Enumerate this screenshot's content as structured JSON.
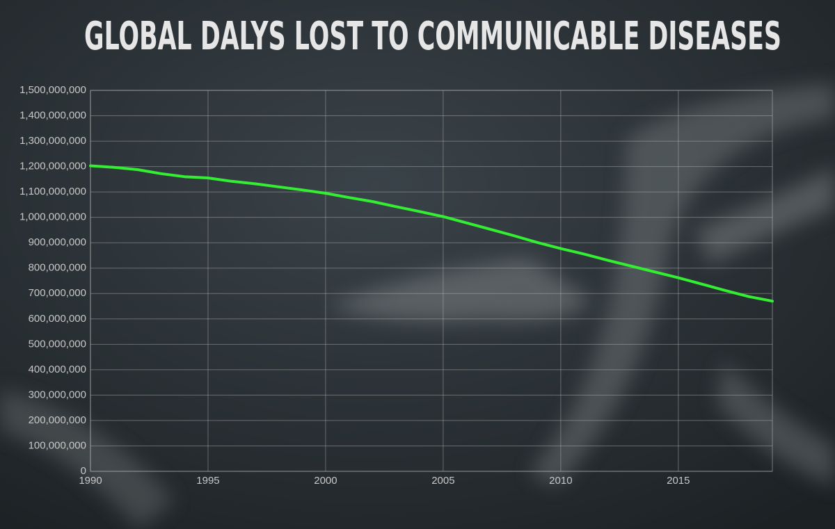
{
  "chart_data": {
    "type": "line",
    "title": "GLOBAL DALYS LOST TO COMMUNICABLE DISEASES",
    "x": [
      1990,
      1991,
      1992,
      1993,
      1994,
      1995,
      1996,
      1997,
      1998,
      1999,
      2000,
      2001,
      2002,
      2003,
      2004,
      2005,
      2006,
      2007,
      2008,
      2009,
      2010,
      2011,
      2012,
      2013,
      2014,
      2015,
      2016,
      2017,
      2018,
      2019
    ],
    "values": [
      1203000000,
      1197000000,
      1188000000,
      1172000000,
      1160000000,
      1155000000,
      1142000000,
      1132000000,
      1120000000,
      1108000000,
      1095000000,
      1078000000,
      1062000000,
      1042000000,
      1023000000,
      1003000000,
      978000000,
      953000000,
      928000000,
      901000000,
      877000000,
      855000000,
      831000000,
      808000000,
      785000000,
      762000000,
      737000000,
      712000000,
      688000000,
      670000000
    ],
    "color": "#33ee33",
    "xlim": [
      1990,
      2019
    ],
    "xticks": [
      1990,
      1995,
      2000,
      2005,
      2010,
      2015
    ],
    "ylim": [
      0,
      1500000000
    ],
    "yticks": [
      0,
      {
        "value": 100000000,
        "label": "100,000,000"
      },
      {
        "value": 200000000,
        "label": "200,000,000"
      },
      {
        "value": 300000000,
        "label": "300,000,000"
      },
      {
        "value": 400000000,
        "label": "400,000,000"
      },
      {
        "value": 500000000,
        "label": "500,000,000"
      },
      {
        "value": 600000000,
        "label": "600,000,000"
      },
      {
        "value": 700000000,
        "label": "700,000,000"
      },
      {
        "value": 800000000,
        "label": "800,000,000"
      },
      {
        "value": 900000000,
        "label": "900,000,000"
      },
      {
        "value": 1000000000,
        "label": "1,000,000,000"
      },
      {
        "value": 1100000000,
        "label": "1,100,000,000"
      },
      {
        "value": 1200000000,
        "label": "1,200,000,000"
      },
      {
        "value": 1300000000,
        "label": "1,300,000,000"
      },
      {
        "value": 1400000000,
        "label": "1,400,000,000"
      },
      {
        "value": 1500000000,
        "label": "1,500,000,000"
      }
    ],
    "grid": true
  }
}
